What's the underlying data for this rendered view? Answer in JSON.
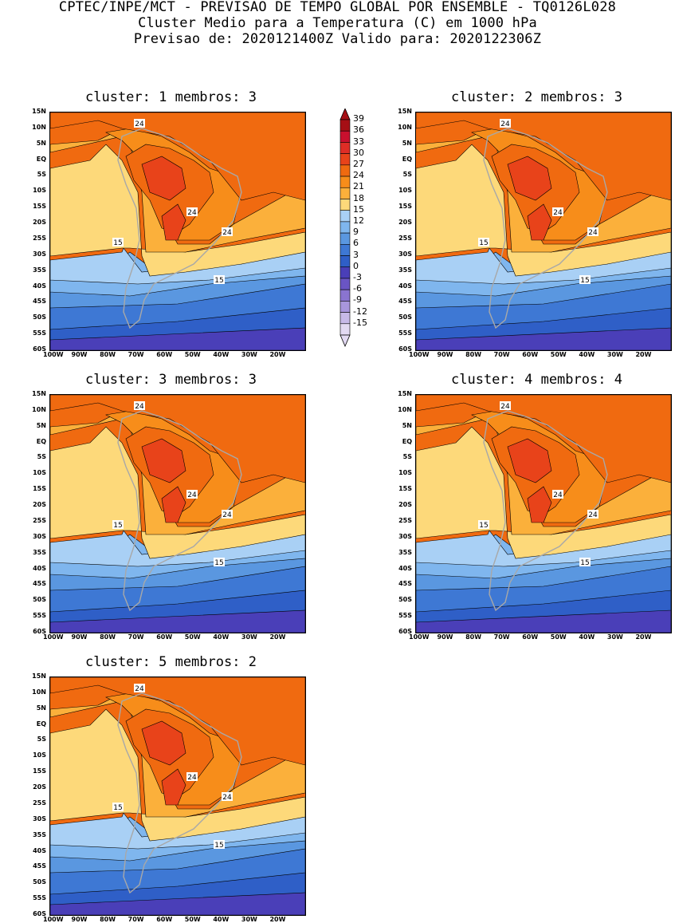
{
  "header": {
    "line1": "CPTEC/INPE/MCT - PREVISAO DE TEMPO GLOBAL POR ENSEMBLE - TQ0126L028",
    "line2": "Cluster Medio para a Temperatura (C) em 1000 hPa",
    "line3": "Previsao de: 2020121400Z   Valido para: 2020122306Z"
  },
  "panels": [
    {
      "title": "cluster: 1   membros: 3"
    },
    {
      "title": "cluster: 2   membros: 3"
    },
    {
      "title": "cluster: 3   membros: 3"
    },
    {
      "title": "cluster: 4   membros: 4"
    },
    {
      "title": "cluster: 5   membros: 2"
    }
  ],
  "axes": {
    "lat_labels": [
      "15N",
      "10N",
      "5N",
      "EQ",
      "5S",
      "10S",
      "15S",
      "20S",
      "25S",
      "30S",
      "35S",
      "40S",
      "45S",
      "50S",
      "55S",
      "60S"
    ],
    "lon_labels": [
      "100W",
      "90W",
      "80W",
      "70W",
      "60W",
      "50W",
      "40W",
      "30W",
      "20W"
    ]
  },
  "contour_labels": {
    "c24": "24",
    "c15": "15"
  },
  "colorbar": {
    "labels": [
      "39",
      "36",
      "33",
      "30",
      "27",
      "24",
      "21",
      "18",
      "15",
      "12",
      "9",
      "6",
      "3",
      "0",
      "-3",
      "-6",
      "-9",
      "-12",
      "-15"
    ],
    "colors": [
      "#a50f15",
      "#c8102e",
      "#de2d26",
      "#e8431a",
      "#f06a10",
      "#f78d1a",
      "#fbb03b",
      "#fdd97a",
      "#a9d0f5",
      "#7fb6ee",
      "#5a97e0",
      "#3e78d4",
      "#2f5fc7",
      "#4a3fb8",
      "#6a55c4",
      "#8a74d0",
      "#a896dc",
      "#c7b9e8",
      "#e2d9f2"
    ]
  },
  "chart_data": {
    "type": "heatmap",
    "variable": "Temperatura (C) em 1000 hPa",
    "contours": [
      15,
      24
    ],
    "lat_range": [
      "60S",
      "15N"
    ],
    "lon_range": [
      "100W",
      "10W"
    ]
  }
}
